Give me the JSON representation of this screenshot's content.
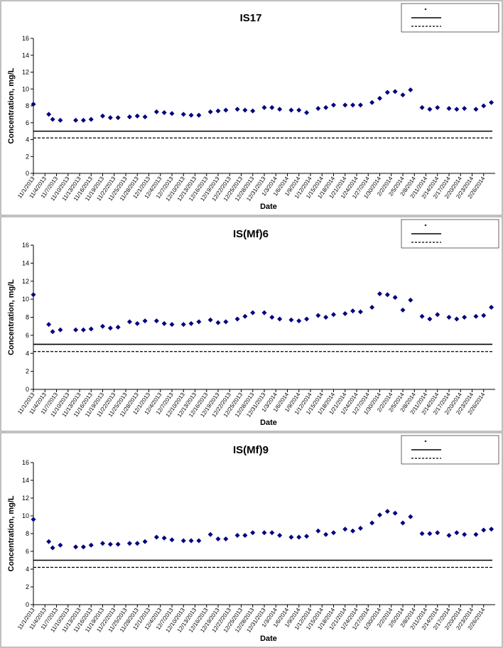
{
  "chart_data": [
    {
      "type": "scatter",
      "title": "IS17",
      "xlabel": "Date",
      "ylabel": "Concentration, mg/L",
      "ylim": [
        0,
        16
      ],
      "ytick_step": 2,
      "grid": false,
      "legend_placement": "top-right",
      "x_tick_labels": [
        "11/1/2013",
        "11/4/2013",
        "11/7/2013",
        "11/10/2013",
        "11/13/2013",
        "11/16/2013",
        "11/19/2013",
        "11/22/2013",
        "11/25/2013",
        "11/28/2013",
        "12/1/2013",
        "12/4/2013",
        "12/7/2013",
        "12/10/2013",
        "12/13/2013",
        "12/16/2013",
        "12/19/2013",
        "12/22/2013",
        "12/25/2013",
        "12/28/2013",
        "12/31/2013",
        "1/3/2014",
        "1/6/2014",
        "1/9/2014",
        "1/12/2014",
        "1/15/2014",
        "1/18/2014",
        "1/21/2014",
        "1/24/2014",
        "1/27/2014",
        "1/30/2014",
        "2/2/2014",
        "2/5/2014",
        "2/8/2014",
        "2/11/2014",
        "2/14/2014",
        "2/17/2014",
        "2/20/2014",
        "2/23/2014",
        "2/26/2014"
      ],
      "series": [
        {
          "name": "",
          "marker": "diamond",
          "color": "#000080",
          "x": [
            "11/1/2013",
            "11/5/2013",
            "11/6/2013",
            "11/8/2013",
            "11/12/2013",
            "11/14/2013",
            "11/16/2013",
            "11/19/2013",
            "11/21/2013",
            "11/23/2013",
            "11/26/2013",
            "11/28/2013",
            "11/30/2013",
            "12/3/2013",
            "12/5/2013",
            "12/7/2013",
            "12/10/2013",
            "12/12/2013",
            "12/14/2013",
            "12/17/2013",
            "12/19/2013",
            "12/21/2013",
            "12/24/2013",
            "12/26/2013",
            "12/28/2013",
            "12/31/2013",
            "1/2/2014",
            "1/4/2014",
            "1/7/2014",
            "1/9/2014",
            "1/11/2014",
            "1/14/2014",
            "1/16/2014",
            "1/18/2014",
            "1/21/2014",
            "1/23/2014",
            "1/25/2014",
            "1/28/2014",
            "1/30/2014",
            "2/1/2014",
            "2/3/2014",
            "2/5/2014",
            "2/7/2014",
            "2/10/2014",
            "2/12/2014",
            "2/14/2014",
            "2/17/2014",
            "2/19/2014",
            "2/21/2014",
            "2/24/2014",
            "2/26/2014",
            "2/28/2014"
          ],
          "y": [
            8.2,
            7.0,
            6.4,
            6.3,
            6.3,
            6.3,
            6.4,
            6.8,
            6.6,
            6.6,
            6.7,
            6.8,
            6.7,
            7.3,
            7.2,
            7.1,
            7.0,
            6.9,
            6.9,
            7.3,
            7.4,
            7.5,
            7.6,
            7.5,
            7.4,
            7.8,
            7.8,
            7.6,
            7.5,
            7.5,
            7.2,
            7.7,
            7.8,
            8.1,
            8.1,
            8.1,
            8.1,
            8.4,
            8.9,
            9.6,
            9.7,
            9.3,
            9.9,
            7.8,
            7.6,
            7.8,
            7.7,
            7.6,
            7.7,
            7.6,
            8.0,
            8.4
          ]
        },
        {
          "name": "",
          "line": "solid",
          "y": [
            5.0,
            5.0
          ]
        },
        {
          "name": "",
          "line": "dashed",
          "y": [
            4.2,
            4.2
          ]
        }
      ]
    },
    {
      "type": "scatter",
      "title": "IS(Mf)6",
      "xlabel": "Date",
      "ylabel": "Concentration, mg/L",
      "ylim": [
        0,
        16
      ],
      "ytick_step": 2,
      "grid": false,
      "legend_placement": "top-right",
      "x_tick_labels": [
        "11/1/2013",
        "11/4/2013",
        "11/7/2013",
        "11/10/2013",
        "11/13/2013",
        "11/16/2013",
        "11/19/2013",
        "11/22/2013",
        "11/25/2013",
        "11/28/2013",
        "12/1/2013",
        "12/4/2013",
        "12/7/2013",
        "12/10/2013",
        "12/13/2013",
        "12/16/2013",
        "12/19/2013",
        "12/22/2013",
        "12/25/2013",
        "12/28/2013",
        "12/31/2013",
        "1/3/2014",
        "1/6/2014",
        "1/9/2014",
        "1/12/2014",
        "1/15/2014",
        "1/18/2014",
        "1/21/2014",
        "1/24/2014",
        "1/27/2014",
        "1/30/2014",
        "2/2/2014",
        "2/5/2014",
        "2/8/2014",
        "2/11/2014",
        "2/14/2014",
        "2/17/2014",
        "2/20/2014",
        "2/23/2014",
        "2/26/2014"
      ],
      "series": [
        {
          "name": "",
          "marker": "diamond",
          "color": "#000080",
          "x": [
            "11/1/2013",
            "11/5/2013",
            "11/6/2013",
            "11/8/2013",
            "11/12/2013",
            "11/14/2013",
            "11/16/2013",
            "11/19/2013",
            "11/21/2013",
            "11/23/2013",
            "11/26/2013",
            "11/28/2013",
            "11/30/2013",
            "12/3/2013",
            "12/5/2013",
            "12/7/2013",
            "12/10/2013",
            "12/12/2013",
            "12/14/2013",
            "12/17/2013",
            "12/19/2013",
            "12/21/2013",
            "12/24/2013",
            "12/26/2013",
            "12/28/2013",
            "12/31/2013",
            "1/2/2014",
            "1/4/2014",
            "1/7/2014",
            "1/9/2014",
            "1/11/2014",
            "1/14/2014",
            "1/16/2014",
            "1/18/2014",
            "1/21/2014",
            "1/23/2014",
            "1/25/2014",
            "1/28/2014",
            "1/30/2014",
            "2/1/2014",
            "2/3/2014",
            "2/5/2014",
            "2/7/2014",
            "2/10/2014",
            "2/12/2014",
            "2/14/2014",
            "2/17/2014",
            "2/19/2014",
            "2/21/2014",
            "2/24/2014",
            "2/26/2014",
            "2/28/2014"
          ],
          "y": [
            10.5,
            7.2,
            6.4,
            6.6,
            6.6,
            6.6,
            6.7,
            7.0,
            6.8,
            6.9,
            7.5,
            7.3,
            7.6,
            7.6,
            7.3,
            7.2,
            7.2,
            7.3,
            7.5,
            7.7,
            7.4,
            7.5,
            7.8,
            8.1,
            8.5,
            8.5,
            8.0,
            7.8,
            7.7,
            7.6,
            7.8,
            8.2,
            8.0,
            8.3,
            8.4,
            8.7,
            8.6,
            9.1,
            10.6,
            10.5,
            10.2,
            8.8,
            9.9,
            8.1,
            7.8,
            8.3,
            8.0,
            7.8,
            8.0,
            8.1,
            8.2,
            9.1
          ]
        },
        {
          "name": "",
          "line": "solid",
          "y": [
            5.0,
            5.0
          ]
        },
        {
          "name": "",
          "line": "dashed",
          "y": [
            4.2,
            4.2
          ]
        }
      ]
    },
    {
      "type": "scatter",
      "title": "IS(Mf)9",
      "xlabel": "Date",
      "ylabel": "Concentration, mg/L",
      "ylim": [
        0,
        16
      ],
      "ytick_step": 2,
      "grid": false,
      "legend_placement": "top-right",
      "x_tick_labels": [
        "11/1/2013",
        "11/4/2013",
        "11/7/2013",
        "11/10/2013",
        "11/13/2013",
        "11/16/2013",
        "11/19/2013",
        "11/22/2013",
        "11/25/2013",
        "11/28/2013",
        "12/1/2013",
        "12/4/2013",
        "12/7/2013",
        "12/10/2013",
        "12/13/2013",
        "12/16/2013",
        "12/19/2013",
        "12/22/2013",
        "12/25/2013",
        "12/28/2013",
        "12/31/2013",
        "1/3/2014",
        "1/6/2014",
        "1/9/2014",
        "1/12/2014",
        "1/15/2014",
        "1/18/2014",
        "1/21/2014",
        "1/24/2014",
        "1/27/2014",
        "1/30/2014",
        "2/2/2014",
        "2/5/2014",
        "2/8/2014",
        "2/11/2014",
        "2/14/2014",
        "2/17/2014",
        "2/20/2014",
        "2/23/2014",
        "2/26/2014"
      ],
      "series": [
        {
          "name": "",
          "marker": "diamond",
          "color": "#000080",
          "x": [
            "11/1/2013",
            "11/5/2013",
            "11/6/2013",
            "11/8/2013",
            "11/12/2013",
            "11/14/2013",
            "11/16/2013",
            "11/19/2013",
            "11/21/2013",
            "11/23/2013",
            "11/26/2013",
            "11/28/2013",
            "11/30/2013",
            "12/3/2013",
            "12/5/2013",
            "12/7/2013",
            "12/10/2013",
            "12/12/2013",
            "12/14/2013",
            "12/17/2013",
            "12/19/2013",
            "12/21/2013",
            "12/24/2013",
            "12/26/2013",
            "12/28/2013",
            "12/31/2013",
            "1/2/2014",
            "1/4/2014",
            "1/7/2014",
            "1/9/2014",
            "1/11/2014",
            "1/14/2014",
            "1/16/2014",
            "1/18/2014",
            "1/21/2014",
            "1/23/2014",
            "1/25/2014",
            "1/28/2014",
            "1/30/2014",
            "2/1/2014",
            "2/3/2014",
            "2/5/2014",
            "2/7/2014",
            "2/10/2014",
            "2/12/2014",
            "2/14/2014",
            "2/17/2014",
            "2/19/2014",
            "2/21/2014",
            "2/24/2014",
            "2/26/2014",
            "2/28/2014"
          ],
          "y": [
            9.6,
            7.1,
            6.4,
            6.7,
            6.5,
            6.5,
            6.7,
            6.9,
            6.8,
            6.8,
            6.9,
            6.9,
            7.1,
            7.6,
            7.5,
            7.3,
            7.2,
            7.2,
            7.2,
            7.9,
            7.4,
            7.4,
            7.8,
            7.8,
            8.1,
            8.1,
            8.1,
            7.8,
            7.6,
            7.6,
            7.7,
            8.3,
            7.9,
            8.1,
            8.5,
            8.3,
            8.6,
            9.2,
            10.1,
            10.5,
            10.3,
            9.2,
            9.9,
            8.0,
            8.0,
            8.1,
            7.8,
            8.1,
            7.9,
            7.9,
            8.4,
            8.5
          ]
        },
        {
          "name": "",
          "line": "solid",
          "y": [
            5.0,
            5.0
          ]
        },
        {
          "name": "",
          "line": "dashed",
          "y": [
            4.2,
            4.2
          ]
        }
      ]
    }
  ]
}
